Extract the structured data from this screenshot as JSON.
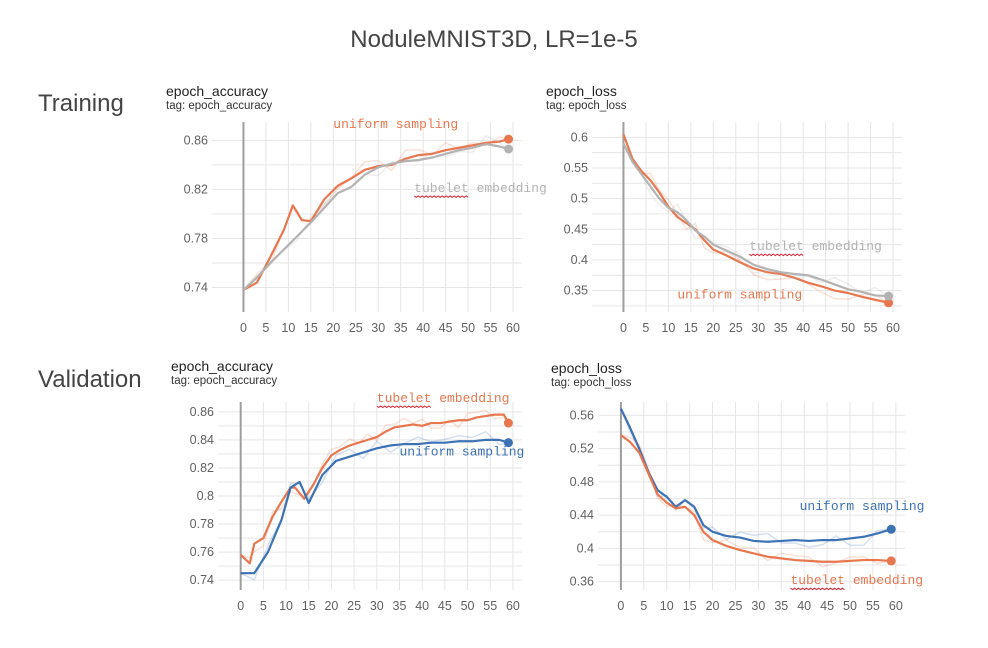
{
  "figure_title": "NoduleMNIST3D, LR=1e-5",
  "row_labels": {
    "training": "Training",
    "validation": "Validation"
  },
  "colors": {
    "orange": "#e8774f",
    "gray": "#b3b3b3",
    "blue": "#3d72b4",
    "grid": "#e6e6e6",
    "axis": "#9e9e9e"
  },
  "chart_data": [
    {
      "id": "train-acc",
      "type": "line",
      "title": "epoch_accuracy",
      "tag": "tag: epoch_accuracy",
      "xlim": [
        -7,
        62
      ],
      "ylim": [
        0.72,
        0.875
      ],
      "xticks": [
        0,
        5,
        10,
        15,
        20,
        25,
        30,
        35,
        40,
        45,
        50,
        55,
        60
      ],
      "yticks": [
        0.74,
        0.78,
        0.82,
        0.86
      ],
      "ytick_labels": [
        "0.74",
        "0.78",
        "0.82",
        "0.86"
      ],
      "series": [
        {
          "name": "uniform sampling",
          "color": "orange",
          "x": [
            0,
            3,
            6,
            9,
            11,
            13,
            15,
            18,
            21,
            24,
            27,
            30,
            33,
            36,
            39,
            42,
            45,
            48,
            51,
            54,
            57,
            59
          ],
          "y": [
            0.738,
            0.744,
            0.765,
            0.787,
            0.807,
            0.795,
            0.794,
            0.812,
            0.823,
            0.829,
            0.836,
            0.839,
            0.84,
            0.845,
            0.848,
            0.849,
            0.852,
            0.854,
            0.856,
            0.858,
            0.859,
            0.861
          ]
        },
        {
          "name": "tubelet embedding",
          "color": "gray",
          "x": [
            0,
            3,
            6,
            9,
            12,
            15,
            18,
            21,
            24,
            27,
            30,
            33,
            36,
            39,
            42,
            45,
            48,
            51,
            54,
            57,
            59
          ],
          "y": [
            0.738,
            0.748,
            0.76,
            0.771,
            0.782,
            0.793,
            0.805,
            0.817,
            0.822,
            0.832,
            0.838,
            0.841,
            0.843,
            0.844,
            0.846,
            0.849,
            0.852,
            0.854,
            0.857,
            0.855,
            0.853
          ]
        }
      ],
      "annotations": [
        {
          "text": "uniform sampling",
          "color": "orange",
          "x": 20,
          "y": 0.87,
          "underline": false
        },
        {
          "text": "tubelet embedding",
          "color": "gray",
          "x": 38,
          "y": 0.818,
          "underline": true,
          "underline_chars": 7
        }
      ]
    },
    {
      "id": "train-loss",
      "type": "line",
      "title": "epoch_loss",
      "tag": "tag: epoch_loss",
      "xlim": [
        -7,
        62
      ],
      "ylim": [
        0.315,
        0.625
      ],
      "xticks": [
        0,
        5,
        10,
        15,
        20,
        25,
        30,
        35,
        40,
        45,
        50,
        55,
        60
      ],
      "yticks": [
        0.35,
        0.4,
        0.45,
        0.5,
        0.55,
        0.6
      ],
      "ytick_labels": [
        "0.35",
        "0.4",
        "0.45",
        "0.5",
        "0.55",
        "0.6"
      ],
      "series": [
        {
          "name": "uniform sampling",
          "color": "orange",
          "x": [
            0,
            2,
            4,
            6,
            8,
            10,
            12,
            14,
            16,
            18,
            20,
            23,
            26,
            29,
            32,
            35,
            38,
            41,
            44,
            47,
            50,
            53,
            56,
            59
          ],
          "y": [
            0.605,
            0.565,
            0.545,
            0.53,
            0.51,
            0.487,
            0.47,
            0.46,
            0.45,
            0.432,
            0.417,
            0.407,
            0.396,
            0.386,
            0.38,
            0.377,
            0.371,
            0.363,
            0.357,
            0.35,
            0.346,
            0.34,
            0.335,
            0.33
          ]
        },
        {
          "name": "tubelet embedding",
          "color": "gray",
          "x": [
            0,
            2,
            4,
            6,
            8,
            10,
            12,
            14,
            16,
            18,
            20,
            23,
            26,
            29,
            32,
            35,
            38,
            41,
            44,
            47,
            50,
            53,
            56,
            59
          ],
          "y": [
            0.59,
            0.56,
            0.54,
            0.52,
            0.5,
            0.485,
            0.478,
            0.465,
            0.448,
            0.438,
            0.425,
            0.415,
            0.405,
            0.392,
            0.385,
            0.38,
            0.377,
            0.375,
            0.368,
            0.36,
            0.352,
            0.348,
            0.342,
            0.341
          ]
        }
      ],
      "annotations": [
        {
          "text": "tubelet embedding",
          "color": "gray",
          "x": 28,
          "y": 0.416,
          "underline": true,
          "underline_chars": 7
        },
        {
          "text": "uniform sampling",
          "color": "orange",
          "x": 12,
          "y": 0.337,
          "underline": false
        }
      ]
    },
    {
      "id": "val-acc",
      "type": "line",
      "title": "epoch_accuracy",
      "tag": "tag: epoch_accuracy",
      "xlim": [
        -5,
        62
      ],
      "ylim": [
        0.733,
        0.867
      ],
      "xticks": [
        0,
        5,
        10,
        15,
        20,
        25,
        30,
        35,
        40,
        45,
        50,
        55,
        60
      ],
      "yticks": [
        0.74,
        0.76,
        0.78,
        0.8,
        0.82,
        0.84,
        0.86
      ],
      "ytick_labels": [
        "0.74",
        "0.76",
        "0.78",
        "0.8",
        "0.82",
        "0.84",
        "0.86"
      ],
      "series": [
        {
          "name": "tubelet embedding",
          "color": "orange",
          "x": [
            0,
            2,
            3,
            5,
            7,
            9,
            11,
            12,
            14,
            16,
            18,
            20,
            22,
            24,
            26,
            28,
            30,
            32,
            34,
            36,
            38,
            40,
            42,
            44,
            46,
            48,
            50,
            52,
            54,
            56,
            58,
            59
          ],
          "y": [
            0.758,
            0.752,
            0.766,
            0.77,
            0.785,
            0.796,
            0.806,
            0.806,
            0.798,
            0.808,
            0.82,
            0.829,
            0.833,
            0.836,
            0.838,
            0.84,
            0.842,
            0.846,
            0.849,
            0.85,
            0.851,
            0.85,
            0.852,
            0.852,
            0.853,
            0.854,
            0.854,
            0.856,
            0.857,
            0.858,
            0.858,
            0.852
          ]
        },
        {
          "name": "uniform sampling",
          "color": "blue",
          "x": [
            0,
            3,
            6,
            9,
            11,
            13,
            15,
            18,
            21,
            24,
            27,
            30,
            33,
            36,
            39,
            42,
            45,
            48,
            51,
            54,
            57,
            59
          ],
          "y": [
            0.745,
            0.745,
            0.76,
            0.783,
            0.806,
            0.81,
            0.795,
            0.815,
            0.825,
            0.828,
            0.831,
            0.834,
            0.836,
            0.837,
            0.837,
            0.838,
            0.838,
            0.839,
            0.839,
            0.84,
            0.84,
            0.838
          ]
        }
      ],
      "annotations": [
        {
          "text": "tubelet embedding",
          "color": "orange",
          "x": 30,
          "y": 0.867,
          "underline": true,
          "underline_chars": 7
        },
        {
          "text": "uniform sampling",
          "color": "blue",
          "x": 35,
          "y": 0.829,
          "underline": false
        }
      ]
    },
    {
      "id": "val-loss",
      "type": "line",
      "title": "epoch_loss",
      "tag": "tag: epoch_loss",
      "xlim": [
        -5,
        62
      ],
      "ylim": [
        0.35,
        0.576
      ],
      "xticks": [
        0,
        5,
        10,
        15,
        20,
        25,
        30,
        35,
        40,
        45,
        50,
        55,
        60
      ],
      "yticks": [
        0.36,
        0.4,
        0.44,
        0.48,
        0.52,
        0.56
      ],
      "ytick_labels": [
        "0.36",
        "0.4",
        "0.44",
        "0.48",
        "0.52",
        "0.56"
      ],
      "series": [
        {
          "name": "uniform sampling",
          "color": "blue",
          "x": [
            0,
            2,
            4,
            6,
            8,
            10,
            12,
            14,
            16,
            18,
            20,
            23,
            26,
            29,
            32,
            35,
            38,
            41,
            44,
            47,
            50,
            53,
            56,
            59
          ],
          "y": [
            0.568,
            0.545,
            0.52,
            0.492,
            0.47,
            0.462,
            0.45,
            0.458,
            0.45,
            0.428,
            0.42,
            0.415,
            0.413,
            0.409,
            0.408,
            0.409,
            0.41,
            0.409,
            0.41,
            0.41,
            0.412,
            0.414,
            0.418,
            0.423
          ]
        },
        {
          "name": "tubelet embedding",
          "color": "orange",
          "x": [
            0,
            2,
            4,
            6,
            8,
            10,
            12,
            14,
            16,
            18,
            20,
            23,
            26,
            29,
            32,
            35,
            38,
            41,
            44,
            47,
            50,
            53,
            56,
            59
          ],
          "y": [
            0.536,
            0.528,
            0.515,
            0.49,
            0.465,
            0.455,
            0.448,
            0.45,
            0.44,
            0.42,
            0.41,
            0.403,
            0.398,
            0.394,
            0.39,
            0.388,
            0.386,
            0.385,
            0.384,
            0.384,
            0.385,
            0.386,
            0.386,
            0.385
          ]
        }
      ],
      "annotations": [
        {
          "text": "uniform sampling",
          "color": "blue",
          "x": 39,
          "y": 0.446,
          "underline": false
        },
        {
          "text": "tubelet embedding",
          "color": "orange",
          "x": 37,
          "y": 0.357,
          "underline": true,
          "underline_chars": 7
        }
      ]
    }
  ]
}
